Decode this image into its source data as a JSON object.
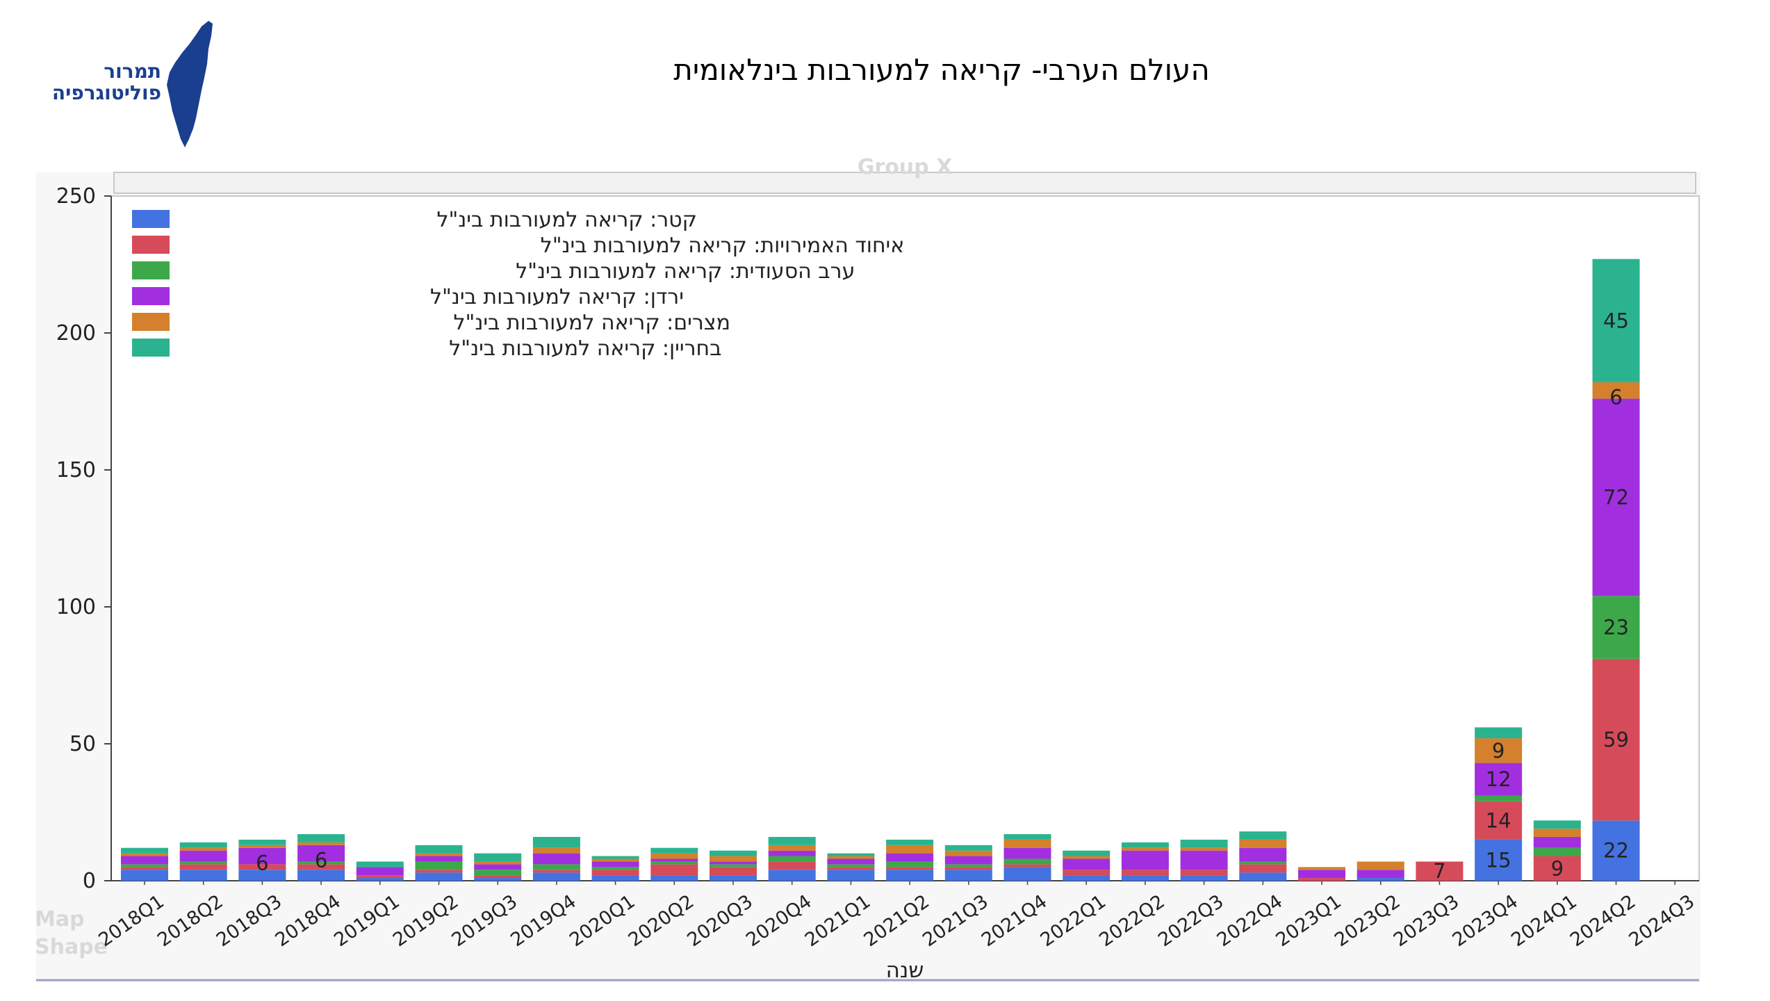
{
  "header": {
    "title": "העולם הערבי- קריאה למעורבות בינלאומית",
    "logo_line1": "תמרור",
    "logo_line2": "פוליטוגרפיה",
    "logo_color": "#1b3f8f"
  },
  "ghost_text": {
    "group_label": "Group X",
    "map_label": "Map",
    "shape_label": "Shape"
  },
  "chart_data": {
    "type": "bar",
    "stacked": true,
    "title": "",
    "xlabel": "שנה",
    "ylabel": "",
    "ylim": [
      0,
      250
    ],
    "yticks": [
      0,
      50,
      100,
      150,
      200,
      250
    ],
    "grid": false,
    "legend_position": "top-left",
    "categories": [
      "2018Q1",
      "2018Q2",
      "2018Q3",
      "2018Q4",
      "2019Q1",
      "2019Q2",
      "2019Q3",
      "2019Q4",
      "2020Q1",
      "2020Q2",
      "2020Q3",
      "2020Q4",
      "2021Q1",
      "2021Q2",
      "2021Q3",
      "2021Q4",
      "2022Q1",
      "2022Q2",
      "2022Q3",
      "2022Q4",
      "2023Q1",
      "2023Q2",
      "2023Q3",
      "2023Q4",
      "2024Q1",
      "2024Q2",
      "2024Q3"
    ],
    "series": [
      {
        "name": "קטר: קריאה למעורבות בינ\"ל",
        "color": "#4472e0",
        "values": [
          4,
          4,
          4,
          4,
          1,
          3,
          1,
          3,
          2,
          2,
          2,
          4,
          4,
          4,
          4,
          5,
          2,
          2,
          2,
          3,
          0,
          1,
          0,
          15,
          0,
          22,
          0
        ]
      },
      {
        "name": "איחוד האמירויות: קריאה למעורבות בינ\"ל",
        "color": "#d64b5a",
        "values": [
          1,
          2,
          2,
          2,
          1,
          1,
          1,
          1,
          2,
          4,
          3,
          3,
          1,
          1,
          1,
          1,
          2,
          2,
          2,
          3,
          1,
          0,
          7,
          14,
          9,
          59,
          0
        ]
      },
      {
        "name": "ערב הסעודית: קריאה למעורבות בינ\"ל",
        "color": "#3ca84a",
        "values": [
          1,
          1,
          0,
          1,
          0,
          3,
          2,
          2,
          1,
          1,
          1,
          2,
          1,
          2,
          1,
          2,
          0,
          0,
          0,
          1,
          0,
          0,
          0,
          2,
          3,
          23,
          0
        ]
      },
      {
        "name": "ירדן: קריאה למעורבות בינ\"ל",
        "color": "#a12fe0",
        "values": [
          3,
          4,
          6,
          6,
          3,
          2,
          2,
          4,
          2,
          1,
          1,
          2,
          2,
          3,
          3,
          4,
          4,
          7,
          7,
          5,
          3,
          3,
          0,
          12,
          4,
          72,
          0
        ]
      },
      {
        "name": "מצרים: קריאה למעורבות בינ\"ל",
        "color": "#d4802c",
        "values": [
          1,
          1,
          1,
          1,
          0,
          1,
          1,
          2,
          1,
          2,
          2,
          2,
          1,
          3,
          2,
          3,
          1,
          1,
          1,
          3,
          1,
          3,
          0,
          9,
          3,
          6,
          0
        ]
      },
      {
        "name": "בחריין: קריאה למעורבות בינ\"ל",
        "color": "#2bb38f",
        "values": [
          2,
          2,
          2,
          3,
          2,
          3,
          3,
          4,
          1,
          2,
          2,
          3,
          1,
          2,
          2,
          2,
          2,
          2,
          3,
          3,
          0,
          0,
          0,
          4,
          3,
          45,
          0
        ]
      }
    ],
    "data_labels": [
      {
        "category": "2018Q3",
        "series": 3,
        "text": "6"
      },
      {
        "category": "2018Q4",
        "series": 3,
        "text": "6"
      },
      {
        "category": "2023Q3",
        "series": 1,
        "text": "7"
      },
      {
        "category": "2023Q4",
        "series": 0,
        "text": "15"
      },
      {
        "category": "2023Q4",
        "series": 1,
        "text": "14"
      },
      {
        "category": "2023Q4",
        "series": 3,
        "text": "12"
      },
      {
        "category": "2023Q4",
        "series": 4,
        "text": "9"
      },
      {
        "category": "2024Q1",
        "series": 1,
        "text": "9"
      },
      {
        "category": "2024Q2",
        "series": 0,
        "text": "22"
      },
      {
        "category": "2024Q2",
        "series": 1,
        "text": "59"
      },
      {
        "category": "2024Q2",
        "series": 2,
        "text": "23"
      },
      {
        "category": "2024Q2",
        "series": 3,
        "text": "72"
      },
      {
        "category": "2024Q2",
        "series": 4,
        "text": "6"
      },
      {
        "category": "2024Q2",
        "series": 5,
        "text": "45"
      }
    ]
  }
}
